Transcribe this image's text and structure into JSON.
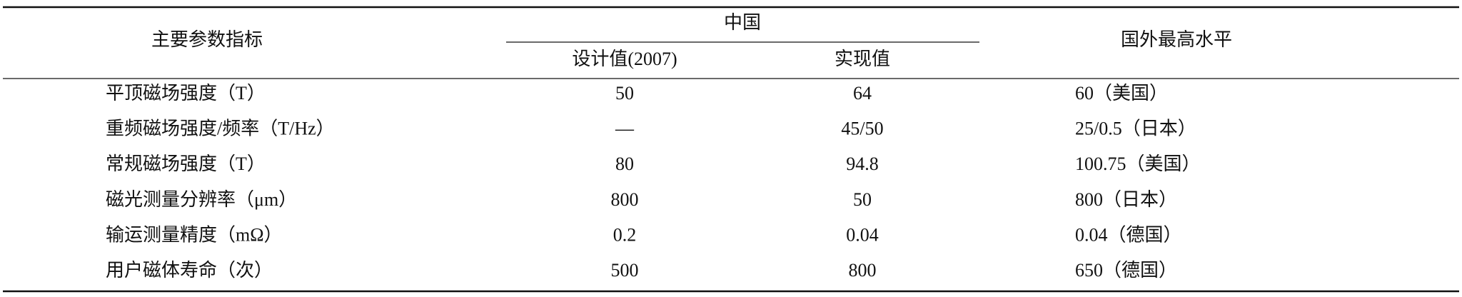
{
  "table": {
    "header": {
      "param": "主要参数指标",
      "china": "中国",
      "design": "设计值(2007)",
      "actual": "实现值",
      "foreign": "国外最高水平"
    },
    "rows": [
      [
        "平顶磁场强度（T）",
        "50",
        "64",
        "60（美国）"
      ],
      [
        "重频磁场强度/频率（T/Hz）",
        "—",
        "45/50",
        "25/0.5（日本）"
      ],
      [
        "常规磁场强度（T）",
        "80",
        "94.8",
        "100.75（美国）"
      ],
      [
        "磁光测量分辨率（μm）",
        "800",
        "50",
        "800（日本）"
      ],
      [
        "输运测量精度（mΩ）",
        "0.2",
        "0.04",
        "0.04（德国）"
      ],
      [
        "用户磁体寿命（次）",
        "500",
        "800",
        "650（德国）"
      ]
    ]
  }
}
